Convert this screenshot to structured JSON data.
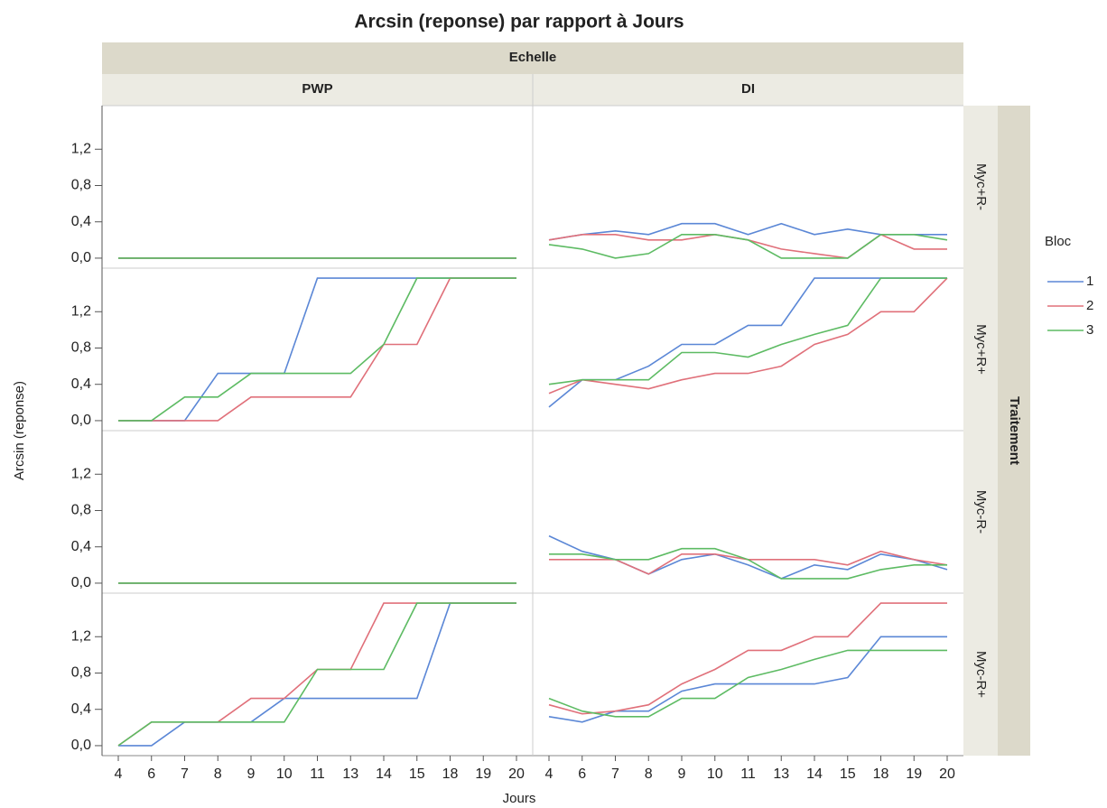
{
  "chart_data": {
    "type": "line",
    "title": "Arcsin (reponse) par rapport à Jours",
    "column_facet_label": "Echelle",
    "row_facet_label": "Traitement",
    "x_label": "Jours",
    "y_label": "Arcsin (reponse)",
    "columns": [
      "PWP",
      "DI"
    ],
    "rows": [
      "Myc+R-",
      "Myc+R+",
      "Myc-R-",
      "Myc-R+"
    ],
    "categories": [
      "4",
      "6",
      "7",
      "8",
      "9",
      "10",
      "11",
      "13",
      "14",
      "15",
      "18",
      "19",
      "20"
    ],
    "ylim": [
      -0.11,
      1.68
    ],
    "yticks": [
      {
        "value": 0,
        "label": "0,0"
      },
      {
        "value": 0.4,
        "label": "0,4"
      },
      {
        "value": 0.8,
        "label": "0,8"
      },
      {
        "value": 1.2,
        "label": "1,2"
      }
    ],
    "legend": {
      "title": "Bloc",
      "position": "right"
    },
    "series": [
      {
        "name": "1",
        "color": "#5b87d6"
      },
      {
        "name": "2",
        "color": "#e0707a"
      },
      {
        "name": "3",
        "color": "#5dbb63"
      }
    ],
    "panels": [
      [
        [
          [
            0,
            0,
            0,
            0,
            0,
            0,
            0,
            0,
            0,
            0,
            0,
            0,
            0
          ],
          [
            0,
            0,
            0,
            0,
            0,
            0,
            0,
            0,
            0,
            0,
            0,
            0,
            0
          ],
          [
            0,
            0,
            0,
            0,
            0,
            0,
            0,
            0,
            0,
            0,
            0,
            0,
            0
          ]
        ],
        [
          [
            0,
            0,
            0,
            0.52,
            0.52,
            0.52,
            1.57,
            1.57,
            1.57,
            1.57,
            1.57,
            1.57,
            1.57
          ],
          [
            0,
            0,
            0,
            0,
            0.26,
            0.26,
            0.26,
            0.26,
            0.84,
            0.84,
            1.57,
            1.57,
            1.57
          ],
          [
            0,
            0,
            0.26,
            0.26,
            0.52,
            0.52,
            0.52,
            0.52,
            0.84,
            1.57,
            1.57,
            1.57,
            1.57
          ]
        ],
        [
          [
            0,
            0,
            0,
            0,
            0,
            0,
            0,
            0,
            0,
            0,
            0,
            0,
            0
          ],
          [
            0,
            0,
            0,
            0,
            0,
            0,
            0,
            0,
            0,
            0,
            0,
            0,
            0
          ],
          [
            0,
            0,
            0,
            0,
            0,
            0,
            0,
            0,
            0,
            0,
            0,
            0,
            0
          ]
        ],
        [
          [
            0,
            0,
            0.26,
            0.26,
            0.26,
            0.52,
            0.52,
            0.52,
            0.52,
            0.52,
            1.57,
            1.57,
            1.57
          ],
          [
            0,
            0.26,
            0.26,
            0.26,
            0.52,
            0.52,
            0.84,
            0.84,
            1.57,
            1.57,
            1.57,
            1.57,
            1.57
          ],
          [
            0,
            0.26,
            0.26,
            0.26,
            0.26,
            0.26,
            0.84,
            0.84,
            0.84,
            1.57,
            1.57,
            1.57,
            1.57
          ]
        ]
      ],
      [
        [
          [
            0.2,
            0.26,
            0.3,
            0.26,
            0.38,
            0.38,
            0.26,
            0.38,
            0.26,
            0.32,
            0.26,
            0.26,
            0.26
          ],
          [
            0.2,
            0.26,
            0.26,
            0.2,
            0.2,
            0.26,
            0.2,
            0.1,
            0.05,
            0,
            0.26,
            0.1,
            0.1
          ],
          [
            0.15,
            0.1,
            0,
            0.05,
            0.26,
            0.26,
            0.2,
            0,
            0,
            0,
            0.26,
            0.26,
            0.2
          ]
        ],
        [
          [
            0.15,
            0.45,
            0.45,
            0.6,
            0.84,
            0.84,
            1.05,
            1.05,
            1.57,
            1.57,
            1.57,
            1.57,
            1.57
          ],
          [
            0.3,
            0.45,
            0.4,
            0.35,
            0.45,
            0.52,
            0.52,
            0.6,
            0.84,
            0.95,
            1.2,
            1.2,
            1.57
          ],
          [
            0.4,
            0.45,
            0.45,
            0.45,
            0.75,
            0.75,
            0.7,
            0.84,
            0.95,
            1.05,
            1.57,
            1.57,
            1.57
          ]
        ],
        [
          [
            0.52,
            0.35,
            0.26,
            0.1,
            0.26,
            0.32,
            0.2,
            0.05,
            0.2,
            0.15,
            0.32,
            0.26,
            0.15
          ],
          [
            0.26,
            0.26,
            0.26,
            0.1,
            0.32,
            0.32,
            0.26,
            0.26,
            0.26,
            0.2,
            0.35,
            0.26,
            0.2
          ],
          [
            0.32,
            0.32,
            0.26,
            0.26,
            0.38,
            0.38,
            0.26,
            0.05,
            0.05,
            0.05,
            0.15,
            0.2,
            0.2
          ]
        ],
        [
          [
            0.32,
            0.26,
            0.38,
            0.38,
            0.6,
            0.68,
            0.68,
            0.68,
            0.68,
            0.75,
            1.2,
            1.2,
            1.2
          ],
          [
            0.45,
            0.35,
            0.38,
            0.45,
            0.68,
            0.84,
            1.05,
            1.05,
            1.2,
            1.2,
            1.57,
            1.57,
            1.57
          ],
          [
            0.52,
            0.38,
            0.32,
            0.32,
            0.52,
            0.52,
            0.75,
            0.84,
            0.95,
            1.05,
            1.05,
            1.05,
            1.05
          ]
        ]
      ]
    ]
  }
}
